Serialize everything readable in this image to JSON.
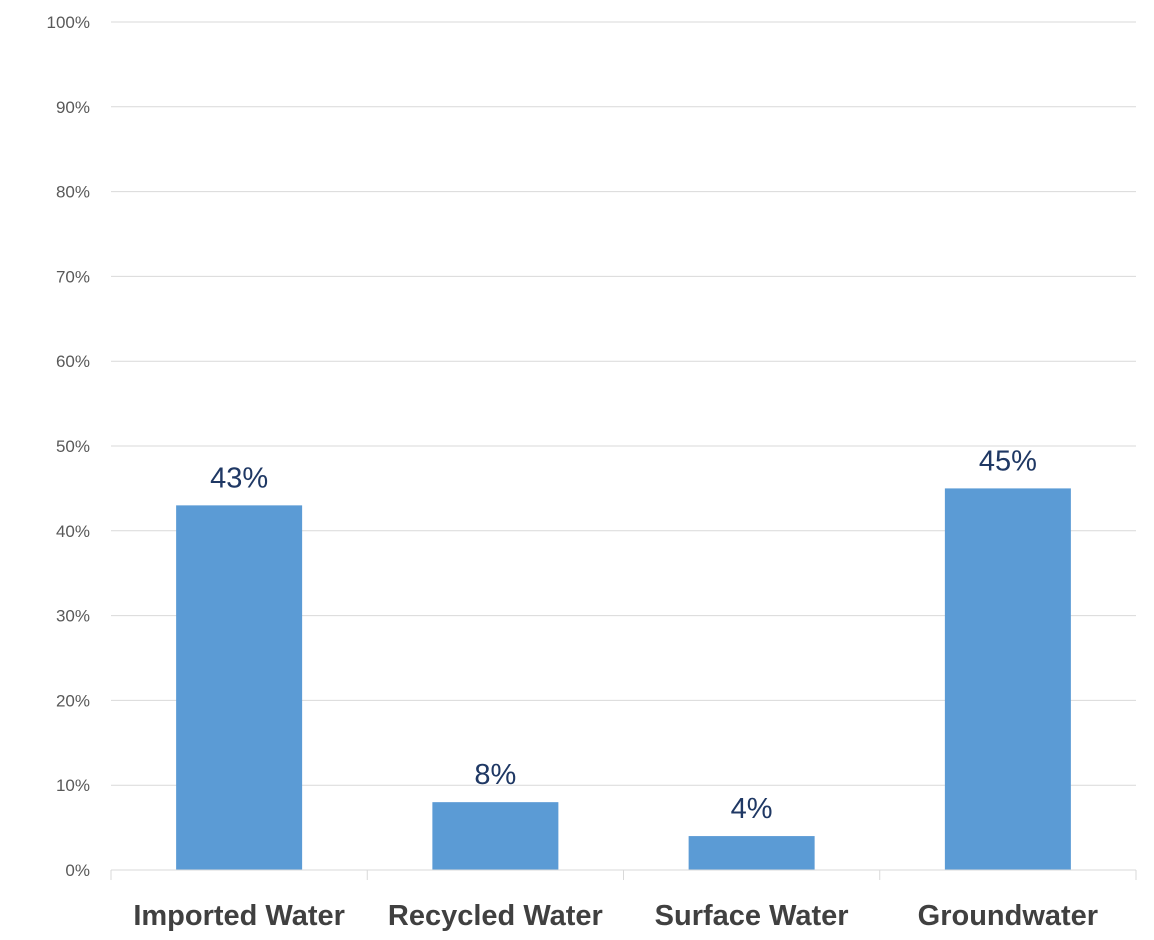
{
  "chart_data": {
    "type": "bar",
    "categories": [
      "Imported Water",
      "Recycled Water",
      "Surface Water",
      "Groundwater"
    ],
    "values": [
      43,
      8,
      4,
      45
    ],
    "data_labels": [
      "43%",
      "8%",
      "4%",
      "45%"
    ],
    "y_ticks": [
      "0%",
      "10%",
      "20%",
      "30%",
      "40%",
      "50%",
      "60%",
      "70%",
      "80%",
      "90%",
      "100%"
    ],
    "ylim": [
      0,
      100
    ],
    "title": "",
    "xlabel": "",
    "ylabel": "",
    "grid": true,
    "legend": "none",
    "colors": {
      "bar": "#5b9bd5",
      "data_label": "#1f3864",
      "tick_label": "#595959",
      "category_label": "#404040",
      "gridline": "#d9d9d9"
    }
  }
}
